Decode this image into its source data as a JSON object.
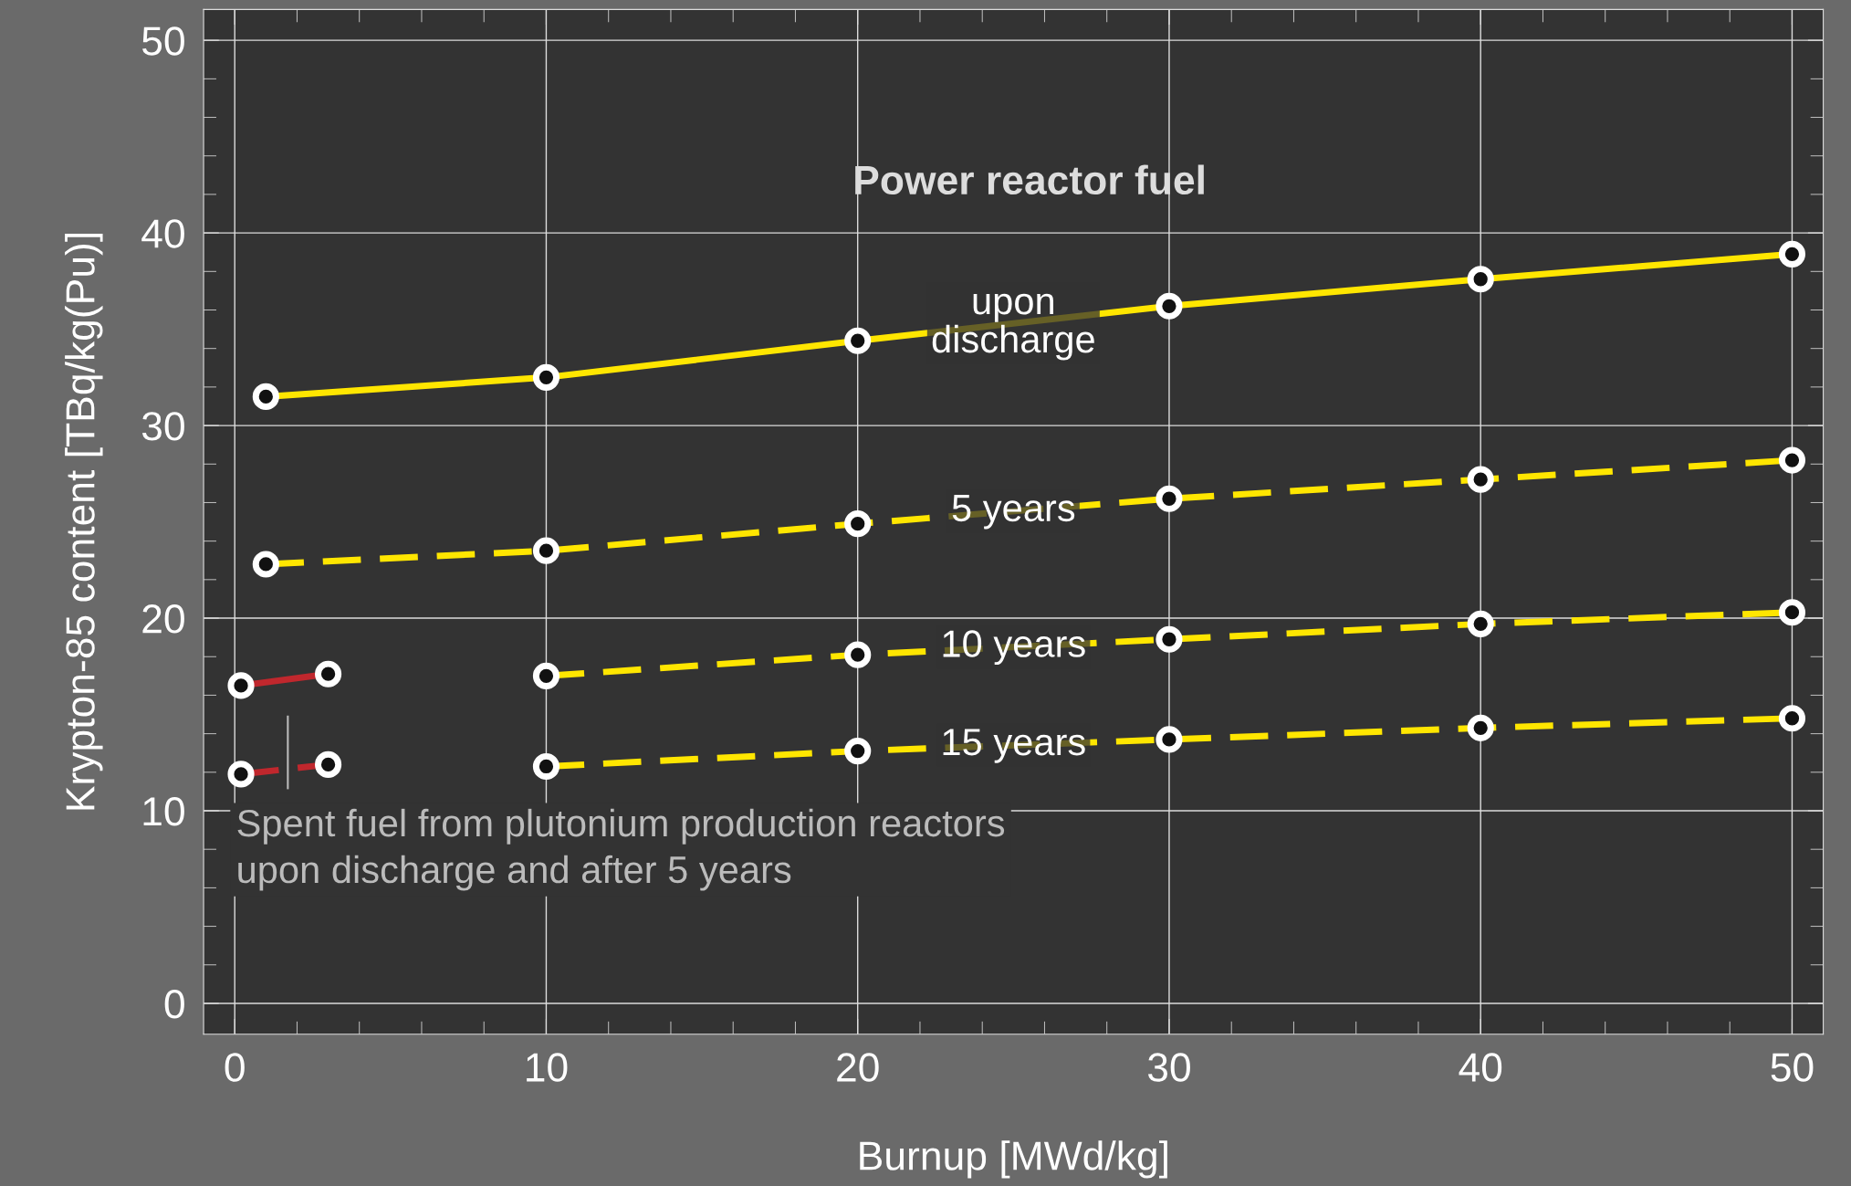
{
  "chart_data": {
    "type": "line",
    "xlabel": "Burnup [MWd/kg]",
    "ylabel": "Krypton-85 content [TBq/kg(Pu)]",
    "xlim": [
      -1,
      51
    ],
    "ylim": [
      -1.6,
      51.6
    ],
    "xticks": [
      0,
      10,
      20,
      30,
      40,
      50
    ],
    "yticks": [
      0,
      10,
      20,
      30,
      40,
      50
    ],
    "grid": true,
    "legend": false,
    "marker": "circle",
    "series": [
      {
        "name": "upon\ndischarge",
        "color": "#ffe600",
        "line_style": "solid",
        "x": [
          1,
          10,
          20,
          30,
          40,
          50
        ],
        "values": [
          31.5,
          32.5,
          34.4,
          36.2,
          37.6,
          38.9
        ]
      },
      {
        "name": "5 years",
        "color": "#ffe600",
        "line_style": "dashed",
        "x": [
          1,
          10,
          20,
          30,
          40,
          50
        ],
        "values": [
          22.8,
          23.5,
          24.9,
          26.2,
          27.2,
          28.2
        ]
      },
      {
        "name": "10 years",
        "color": "#ffe600",
        "line_style": "dashed",
        "x": [
          10,
          20,
          30,
          40,
          50
        ],
        "values": [
          17.0,
          18.1,
          18.9,
          19.7,
          20.3
        ]
      },
      {
        "name": "15 years",
        "color": "#ffe600",
        "line_style": "dashed",
        "x": [
          10,
          20,
          30,
          40,
          50
        ],
        "values": [
          12.3,
          13.1,
          13.7,
          14.3,
          14.8
        ]
      },
      {
        "color": "#c0272d",
        "line_style": "solid",
        "x": [
          0.2,
          3
        ],
        "values": [
          16.5,
          17.1
        ]
      },
      {
        "color": "#c0272d",
        "line_style": "dashed",
        "x": [
          0.2,
          3
        ],
        "values": [
          11.9,
          12.4
        ]
      }
    ],
    "annotations": [
      "Power reactor fuel",
      "Spent fuel from plutonium production reactors\nupon discharge and after 5 years"
    ]
  }
}
